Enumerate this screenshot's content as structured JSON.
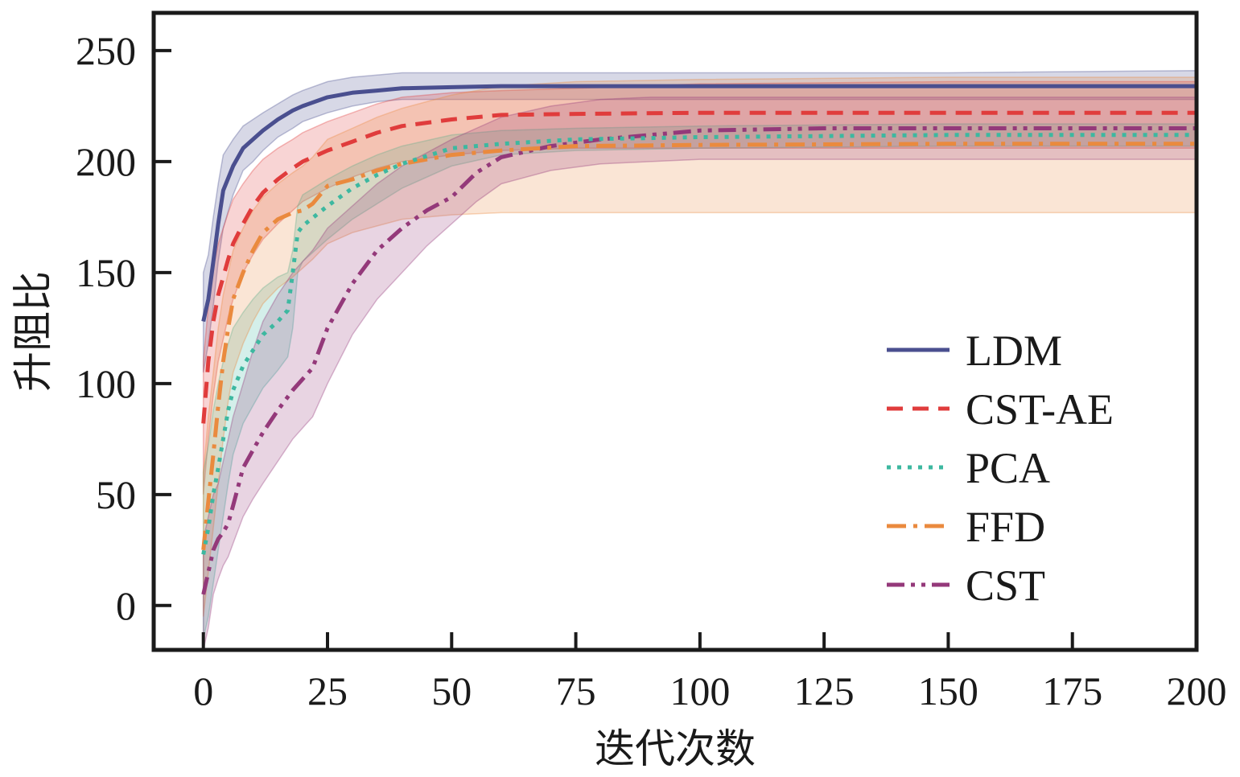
{
  "chart_data": {
    "type": "line",
    "title": "",
    "xlabel": "迭代次数",
    "ylabel": "升阻比",
    "xlim": [
      -10,
      200
    ],
    "ylim": [
      -20,
      267
    ],
    "xticks": [
      0,
      25,
      50,
      75,
      100,
      125,
      150,
      175,
      200
    ],
    "yticks": [
      0,
      50,
      100,
      150,
      200,
      250
    ],
    "grid": false,
    "legend_position": "center-right",
    "series": [
      {
        "name": "LDM",
        "color": "#4a4f8f",
        "dash": "solid",
        "x": [
          0,
          1,
          2,
          3,
          4,
          6,
          8,
          10,
          12,
          15,
          18,
          20,
          25,
          30,
          35,
          40,
          50,
          60,
          80,
          100,
          150,
          200
        ],
        "y": [
          128,
          138,
          155,
          172,
          187,
          198,
          206,
          210,
          214,
          219,
          223,
          225,
          229,
          231,
          232,
          233,
          233.5,
          234,
          234,
          234,
          234,
          234
        ],
        "lower": [
          105,
          118,
          135,
          155,
          170,
          185,
          196,
          200,
          205,
          211,
          215,
          218,
          222,
          225,
          227,
          228,
          228,
          228,
          228,
          228,
          228,
          228
        ],
        "upper": [
          150,
          158,
          175,
          190,
          203,
          210,
          216,
          219,
          222,
          226,
          230,
          232,
          236,
          238,
          239,
          240,
          240,
          240,
          240,
          240,
          240,
          241
        ]
      },
      {
        "name": "CST-AE",
        "color": "#e03c3c",
        "dash": "dashed",
        "x": [
          0,
          1,
          2,
          3,
          4,
          5,
          6,
          8,
          10,
          12,
          15,
          18,
          20,
          25,
          30,
          35,
          40,
          50,
          60,
          75,
          100,
          150,
          200
        ],
        "y": [
          82,
          110,
          128,
          140,
          148,
          156,
          163,
          172,
          180,
          186,
          192,
          197,
          200,
          205,
          209,
          213,
          216,
          219,
          221,
          221.5,
          222,
          222,
          222
        ],
        "lower": [
          50,
          75,
          95,
          110,
          120,
          130,
          138,
          150,
          158,
          165,
          172,
          178,
          182,
          188,
          193,
          197,
          200,
          203,
          205,
          206,
          206,
          206,
          206
        ],
        "upper": [
          110,
          135,
          152,
          163,
          170,
          177,
          183,
          190,
          196,
          201,
          206,
          210,
          213,
          218,
          222,
          226,
          229,
          231,
          232,
          233,
          235,
          236,
          236
        ]
      },
      {
        "name": "PCA",
        "color": "#3db8a0",
        "dash": "dotted",
        "x": [
          0,
          1,
          2,
          3,
          4,
          5,
          6,
          8,
          10,
          12,
          15,
          17,
          18,
          19,
          20,
          25,
          30,
          35,
          40,
          50,
          60,
          75,
          100,
          150,
          200
        ],
        "y": [
          23,
          35,
          50,
          62,
          75,
          88,
          97,
          108,
          115,
          122,
          128,
          133,
          150,
          168,
          171,
          180,
          188,
          194,
          199,
          206,
          208,
          210,
          211,
          212,
          212
        ],
        "lower": [
          -15,
          -5,
          10,
          25,
          40,
          55,
          68,
          82,
          90,
          98,
          106,
          112,
          125,
          150,
          155,
          165,
          174,
          181,
          188,
          198,
          203,
          205,
          206,
          207,
          207
        ],
        "upper": [
          60,
          72,
          88,
          100,
          110,
          118,
          125,
          132,
          138,
          143,
          148,
          150,
          160,
          180,
          185,
          192,
          198,
          203,
          207,
          212,
          214,
          215,
          216,
          217,
          217
        ]
      },
      {
        "name": "FFD",
        "color": "#ea8a3e",
        "dash": "dashdot",
        "x": [
          0,
          1,
          2,
          3,
          4,
          5,
          6,
          8,
          10,
          12,
          15,
          18,
          20,
          22,
          25,
          30,
          35,
          40,
          50,
          60,
          75,
          100,
          150,
          200
        ],
        "y": [
          25,
          47,
          68,
          90,
          110,
          125,
          138,
          150,
          160,
          168,
          174,
          177,
          178,
          181,
          189,
          192,
          196,
          199,
          203,
          205,
          207,
          207.5,
          208,
          208
        ],
        "lower": [
          -5,
          15,
          35,
          55,
          75,
          92,
          105,
          118,
          128,
          136,
          143,
          148,
          152,
          156,
          163,
          168,
          171,
          174,
          176,
          177,
          177,
          177,
          177,
          177
        ],
        "upper": [
          60,
          85,
          105,
          125,
          140,
          150,
          160,
          170,
          178,
          184,
          190,
          195,
          198,
          202,
          210,
          215,
          220,
          224,
          230,
          234,
          236,
          237,
          238,
          238
        ]
      },
      {
        "name": "CST",
        "color": "#94397a",
        "dash": "dashdotdot",
        "x": [
          0,
          1,
          2,
          3,
          4,
          5,
          6,
          8,
          10,
          12,
          15,
          18,
          20,
          22,
          25,
          30,
          35,
          40,
          45,
          50,
          55,
          60,
          70,
          80,
          90,
          100,
          125,
          150,
          200
        ],
        "y": [
          5,
          15,
          25,
          30,
          33,
          37,
          45,
          62,
          70,
          78,
          88,
          97,
          102,
          107,
          125,
          145,
          160,
          170,
          178,
          184,
          195,
          202,
          207,
          210,
          212,
          214,
          215,
          215,
          215
        ],
        "lower": [
          -20,
          -10,
          5,
          12,
          18,
          22,
          28,
          40,
          48,
          55,
          65,
          75,
          80,
          85,
          100,
          122,
          138,
          150,
          162,
          172,
          182,
          190,
          196,
          199,
          200,
          201,
          201,
          201,
          201
        ],
        "upper": [
          30,
          40,
          50,
          55,
          65,
          75,
          85,
          100,
          115,
          128,
          140,
          150,
          155,
          160,
          170,
          180,
          190,
          198,
          204,
          210,
          215,
          220,
          225,
          228,
          229,
          229,
          229,
          229,
          229
        ]
      }
    ]
  }
}
